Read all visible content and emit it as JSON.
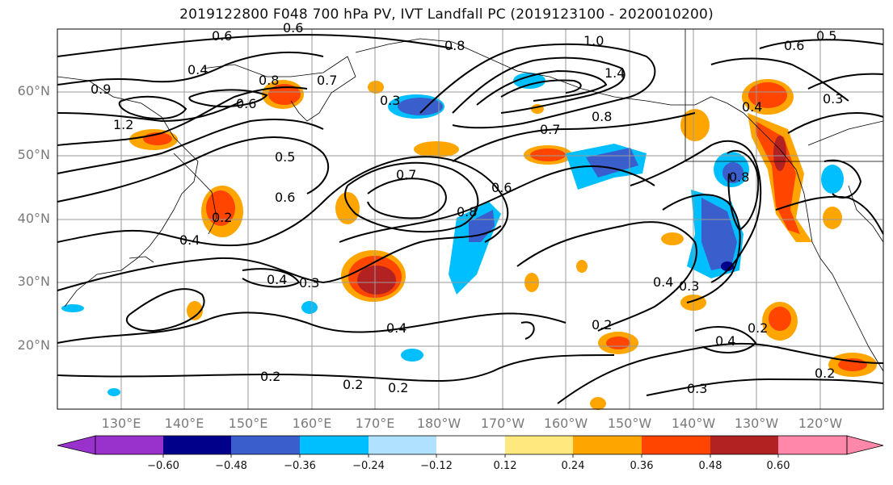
{
  "title": "2019122800 F048 700 hPa PV, IVT Landfall PC (2019123100 - 2020010200)",
  "latitude_labels": [
    "60°N",
    "50°N",
    "40°N",
    "30°N",
    "20°N"
  ],
  "longitude_labels": [
    "130°E",
    "140°E",
    "150°E",
    "160°E",
    "170°E",
    "180°W",
    "170°W",
    "160°W",
    "150°W",
    "140°W",
    "130°W",
    "120°W"
  ],
  "contour_labels": [
    "0.6",
    "0.4",
    "0.6",
    "0.8",
    "0.9",
    "1.2",
    "0.6",
    "0.7",
    "0.3",
    "0.8",
    "1.0",
    "1.4",
    "0.8",
    "0.7",
    "0.6",
    "0.5",
    "0.3",
    "0.4",
    "0.8",
    "0.7",
    "0.6",
    "0.8",
    "0.5",
    "0.2",
    "0.4",
    "0.6",
    "0.3",
    "0.4",
    "0.3",
    "0.2",
    "0.4",
    "0.2",
    "0.2",
    "0.3",
    "0.4",
    "0.2",
    "0.2",
    "0.4",
    "0.2"
  ],
  "colorbar": {
    "ticks": [
      "−0.60",
      "−0.48",
      "−0.36",
      "−0.24",
      "−0.12",
      "0.12",
      "0.24",
      "0.36",
      "0.48",
      "0.60"
    ],
    "colors": [
      "#9932cc",
      "#00008b",
      "#3a5fcd",
      "#00bfff",
      "#b0e2ff",
      "#ffffff",
      "#ffe97f",
      "#ffa500",
      "#ff4500",
      "#b22222",
      "#ff88aa"
    ]
  },
  "colors": {
    "grid": "#9a9a9a",
    "contour": "#000000",
    "coast": "#000000"
  }
}
